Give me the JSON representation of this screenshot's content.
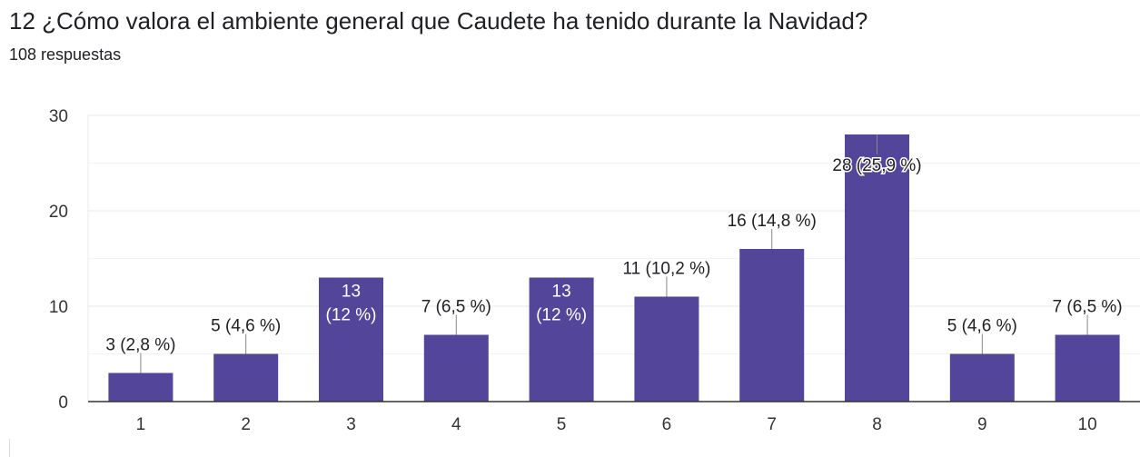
{
  "header": {
    "title": "12 ¿Cómo valora el ambiente general que Caudete ha tenido durante la Navidad?",
    "subtitle": "108 respuestas"
  },
  "colors": {
    "bar": "#52459a",
    "gridline": "#e8e8e8",
    "axis": "#333333",
    "label": "#202124",
    "inside_label": "#ffffff"
  },
  "chart_data": {
    "type": "bar",
    "categories": [
      "1",
      "2",
      "3",
      "4",
      "5",
      "6",
      "7",
      "8",
      "9",
      "10"
    ],
    "values": [
      3,
      5,
      13,
      7,
      13,
      11,
      16,
      28,
      5,
      7
    ],
    "data_labels": [
      "3 (2,8 %)",
      "5 (4,6 %)",
      "13\n(12 %)",
      "7 (6,5 %)",
      "13\n(12 %)",
      "11 (10,2 %)",
      "16 (14,8 %)",
      "28 (25,9 %)",
      "5 (4,6 %)",
      "7 (6,5 %)"
    ],
    "y_ticks": [
      "0",
      "10",
      "20",
      "30"
    ],
    "ylim": [
      0,
      30
    ],
    "grid": true,
    "legend": "none"
  }
}
